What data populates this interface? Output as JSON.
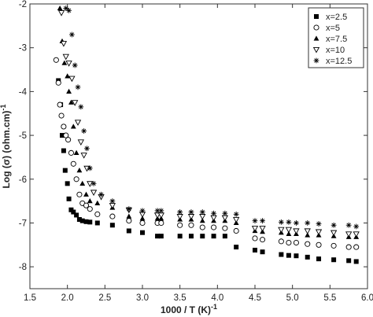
{
  "chart_data": {
    "type": "scatter",
    "title": "",
    "xlabel": "1000 / T (K)",
    "xlabel_sup": "-1",
    "ylabel": "Log (σ) (ohm.cm)",
    "ylabel_sup": "-1",
    "xlim": [
      1.5,
      6.0
    ],
    "ylim": [
      -8.5,
      -2.0
    ],
    "x_ticks": [
      1.5,
      2.0,
      2.5,
      3.0,
      3.5,
      4.0,
      4.5,
      5.0,
      5.5,
      6.0
    ],
    "x_tick_labels": [
      "1.5",
      "2.0",
      "2.5",
      "3.0",
      "3.5",
      "4.0",
      "4.5",
      "5.0",
      "5.5",
      "6.0"
    ],
    "y_ticks": [
      -8,
      -7,
      -6,
      -5,
      -4,
      -3,
      -2
    ],
    "y_tick_labels": [
      "-8",
      "-7",
      "-6",
      "-5",
      "-4",
      "-3",
      "-2"
    ],
    "grid": false,
    "legend_position": "top-right",
    "series": [
      {
        "name": "x=2.5",
        "marker": "filled-square",
        "color": "#000000",
        "points": [
          [
            1.88,
            -3.75
          ],
          [
            1.91,
            -4.3
          ],
          [
            1.93,
            -5.0
          ],
          [
            1.95,
            -5.35
          ],
          [
            1.97,
            -5.8
          ],
          [
            2.0,
            -6.1
          ],
          [
            2.02,
            -6.45
          ],
          [
            2.05,
            -6.7
          ],
          [
            2.08,
            -6.75
          ],
          [
            2.12,
            -6.82
          ],
          [
            2.16,
            -6.92
          ],
          [
            2.2,
            -6.95
          ],
          [
            2.25,
            -6.97
          ],
          [
            2.3,
            -6.98
          ],
          [
            2.4,
            -7.0
          ],
          [
            2.6,
            -7.05
          ],
          [
            2.82,
            -7.18
          ],
          [
            3.0,
            -7.22
          ],
          [
            3.2,
            -7.3
          ],
          [
            3.25,
            -7.3
          ],
          [
            3.5,
            -7.3
          ],
          [
            3.65,
            -7.3
          ],
          [
            3.8,
            -7.3
          ],
          [
            3.95,
            -7.3
          ],
          [
            4.1,
            -7.3
          ],
          [
            4.25,
            -7.55
          ],
          [
            4.5,
            -7.62
          ],
          [
            4.6,
            -7.66
          ],
          [
            4.85,
            -7.72
          ],
          [
            4.95,
            -7.74
          ],
          [
            5.05,
            -7.75
          ],
          [
            5.2,
            -7.78
          ],
          [
            5.35,
            -7.82
          ],
          [
            5.55,
            -7.84
          ],
          [
            5.75,
            -7.86
          ],
          [
            5.85,
            -7.88
          ]
        ]
      },
      {
        "name": "x=5",
        "marker": "open-circle",
        "color": "#000000",
        "points": [
          [
            1.85,
            -3.28
          ],
          [
            1.88,
            -3.8
          ],
          [
            1.9,
            -4.3
          ],
          [
            1.92,
            -4.55
          ],
          [
            1.95,
            -4.8
          ],
          [
            1.98,
            -5.0
          ],
          [
            2.01,
            -5.1
          ],
          [
            2.05,
            -5.4
          ],
          [
            2.08,
            -5.65
          ],
          [
            2.12,
            -6.0
          ],
          [
            2.16,
            -6.35
          ],
          [
            2.2,
            -6.55
          ],
          [
            2.25,
            -6.6
          ],
          [
            2.3,
            -6.68
          ],
          [
            2.4,
            -6.8
          ],
          [
            2.6,
            -6.85
          ],
          [
            2.82,
            -6.95
          ],
          [
            3.0,
            -7.0
          ],
          [
            3.2,
            -7.0
          ],
          [
            3.25,
            -7.0
          ],
          [
            3.5,
            -7.05
          ],
          [
            3.65,
            -7.05
          ],
          [
            3.8,
            -7.1
          ],
          [
            3.95,
            -7.1
          ],
          [
            4.1,
            -7.12
          ],
          [
            4.25,
            -7.18
          ],
          [
            4.5,
            -7.35
          ],
          [
            4.6,
            -7.38
          ],
          [
            4.85,
            -7.42
          ],
          [
            4.95,
            -7.45
          ],
          [
            5.05,
            -7.45
          ],
          [
            5.2,
            -7.48
          ],
          [
            5.35,
            -7.5
          ],
          [
            5.55,
            -7.52
          ],
          [
            5.75,
            -7.55
          ],
          [
            5.85,
            -7.55
          ]
        ]
      },
      {
        "name": "x=7.5",
        "marker": "filled-triangle",
        "color": "#000000",
        "points": [
          [
            1.9,
            -2.1
          ],
          [
            1.93,
            -2.85
          ],
          [
            1.96,
            -3.35
          ],
          [
            2.0,
            -3.65
          ],
          [
            2.02,
            -4.0
          ],
          [
            2.05,
            -4.25
          ],
          [
            2.08,
            -4.8
          ],
          [
            2.12,
            -5.4
          ],
          [
            2.16,
            -5.8
          ],
          [
            2.2,
            -6.1
          ],
          [
            2.25,
            -6.35
          ],
          [
            2.3,
            -6.5
          ],
          [
            2.4,
            -6.55
          ],
          [
            2.6,
            -6.65
          ],
          [
            2.82,
            -6.85
          ],
          [
            3.0,
            -6.9
          ],
          [
            3.2,
            -6.9
          ],
          [
            3.25,
            -6.9
          ],
          [
            3.5,
            -6.92
          ],
          [
            3.65,
            -6.92
          ],
          [
            3.8,
            -6.95
          ],
          [
            3.95,
            -6.95
          ],
          [
            4.1,
            -6.95
          ],
          [
            4.25,
            -7.0
          ],
          [
            4.5,
            -7.18
          ],
          [
            4.6,
            -7.2
          ],
          [
            4.85,
            -7.22
          ],
          [
            4.95,
            -7.25
          ],
          [
            5.05,
            -7.25
          ],
          [
            5.2,
            -7.28
          ],
          [
            5.35,
            -7.28
          ],
          [
            5.55,
            -7.3
          ],
          [
            5.75,
            -7.32
          ],
          [
            5.85,
            -7.32
          ]
        ]
      },
      {
        "name": "x=10",
        "marker": "open-triangle-down",
        "color": "#000000",
        "points": [
          [
            1.92,
            -2.2
          ],
          [
            1.95,
            -2.9
          ],
          [
            1.98,
            -3.2
          ],
          [
            2.02,
            -3.35
          ],
          [
            2.06,
            -3.7
          ],
          [
            2.1,
            -4.25
          ],
          [
            2.14,
            -4.7
          ],
          [
            2.18,
            -5.15
          ],
          [
            2.22,
            -5.45
          ],
          [
            2.26,
            -5.75
          ],
          [
            2.3,
            -6.1
          ],
          [
            2.35,
            -6.3
          ],
          [
            2.45,
            -6.4
          ],
          [
            2.6,
            -6.6
          ],
          [
            2.82,
            -6.7
          ],
          [
            3.0,
            -6.8
          ],
          [
            3.2,
            -6.82
          ],
          [
            3.25,
            -6.82
          ],
          [
            3.5,
            -6.85
          ],
          [
            3.65,
            -6.85
          ],
          [
            3.8,
            -6.85
          ],
          [
            3.95,
            -6.88
          ],
          [
            4.1,
            -6.88
          ],
          [
            4.25,
            -6.92
          ],
          [
            4.5,
            -7.12
          ],
          [
            4.6,
            -7.12
          ],
          [
            4.85,
            -7.15
          ],
          [
            4.95,
            -7.15
          ],
          [
            5.05,
            -7.18
          ],
          [
            5.2,
            -7.18
          ],
          [
            5.35,
            -7.2
          ],
          [
            5.55,
            -7.22
          ],
          [
            5.75,
            -7.25
          ],
          [
            5.85,
            -7.25
          ]
        ]
      },
      {
        "name": "x=12.5",
        "marker": "asterisk",
        "color": "#000000",
        "points": [
          [
            1.98,
            -2.1
          ],
          [
            2.02,
            -2.15
          ],
          [
            2.06,
            -2.7
          ],
          [
            2.1,
            -3.4
          ],
          [
            2.14,
            -3.9
          ],
          [
            2.18,
            -4.35
          ],
          [
            2.22,
            -4.9
          ],
          [
            2.26,
            -5.3
          ],
          [
            2.3,
            -5.75
          ],
          [
            2.35,
            -6.1
          ],
          [
            2.45,
            -6.35
          ],
          [
            2.6,
            -6.5
          ],
          [
            2.82,
            -6.68
          ],
          [
            3.0,
            -6.72
          ],
          [
            3.2,
            -6.72
          ],
          [
            3.25,
            -6.72
          ],
          [
            3.5,
            -6.75
          ],
          [
            3.65,
            -6.75
          ],
          [
            3.8,
            -6.75
          ],
          [
            3.95,
            -6.78
          ],
          [
            4.1,
            -6.78
          ],
          [
            4.25,
            -6.8
          ],
          [
            4.5,
            -6.95
          ],
          [
            4.6,
            -6.95
          ],
          [
            4.85,
            -6.98
          ],
          [
            4.95,
            -6.98
          ],
          [
            5.05,
            -7.0
          ],
          [
            5.2,
            -7.0
          ],
          [
            5.35,
            -7.02
          ],
          [
            5.55,
            -7.05
          ],
          [
            5.75,
            -7.05
          ],
          [
            5.85,
            -7.08
          ]
        ]
      }
    ]
  }
}
